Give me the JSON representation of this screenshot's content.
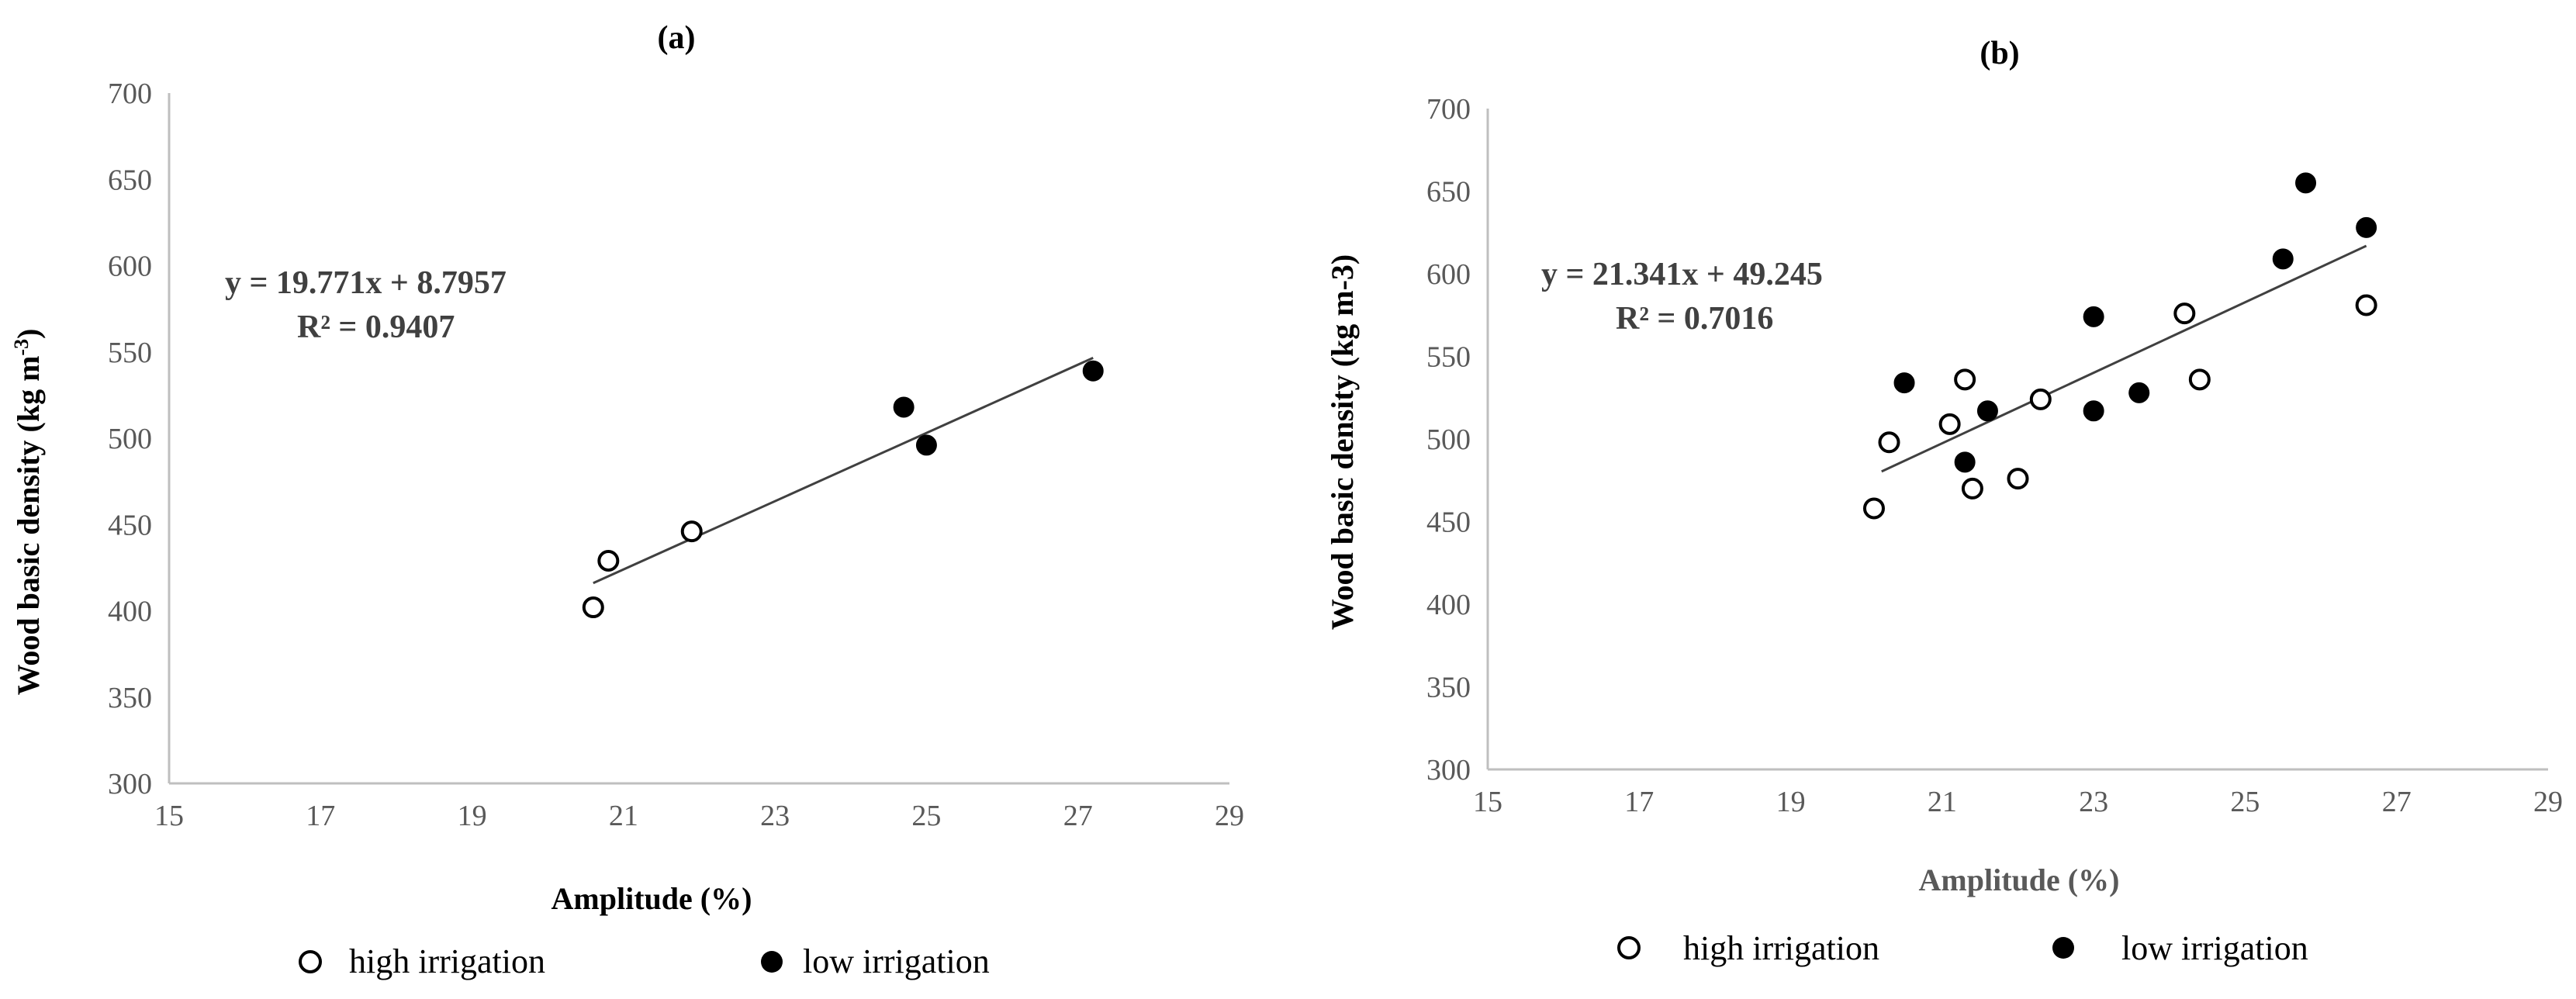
{
  "chart_data": [
    {
      "type": "scatter",
      "title": "(a)",
      "xlabel": "Amplitude  (%)",
      "ylabel": "Wood basic density (kg m",
      "ylabel_sup": "-3",
      "ylabel_end": ")",
      "xlim": [
        15,
        29
      ],
      "ylim": [
        300,
        700
      ],
      "xticks": [
        15,
        17,
        19,
        21,
        23,
        25,
        27,
        29
      ],
      "yticks": [
        300,
        350,
        400,
        450,
        500,
        550,
        600,
        650,
        700
      ],
      "equation": "y = 19.771x + 8.7957",
      "r2": "R² = 0.9407",
      "trendline": {
        "slope": 19.771,
        "intercept": 8.7957,
        "x_range": [
          20.6,
          27.2
        ]
      },
      "series": [
        {
          "name": "high irrigation",
          "style": "open",
          "points": [
            [
              20.6,
              402
            ],
            [
              20.8,
              429
            ],
            [
              21.9,
              446
            ]
          ]
        },
        {
          "name": "low irrigation",
          "style": "filled",
          "points": [
            [
              24.7,
              518
            ],
            [
              25.0,
              496
            ],
            [
              27.2,
              539
            ]
          ]
        }
      ]
    },
    {
      "type": "scatter",
      "title": "(b)",
      "xlabel": "Amplitude  (%)",
      "ylabel": "Wood basic density  (kg m-3)",
      "xlim": [
        15,
        29
      ],
      "ylim": [
        300,
        700
      ],
      "xticks": [
        15,
        17,
        19,
        21,
        23,
        25,
        27,
        29
      ],
      "yticks": [
        300,
        350,
        400,
        450,
        500,
        550,
        600,
        650,
        700
      ],
      "equation": "y = 21.341x + 49.245",
      "r2": "R² = 0.7016",
      "trendline": {
        "slope": 21.341,
        "intercept": 49.245,
        "x_range": [
          20.2,
          26.6
        ]
      },
      "series": [
        {
          "name": "high irrigation",
          "style": "open",
          "points": [
            [
              20.1,
              458
            ],
            [
              20.3,
              498
            ],
            [
              21.1,
              509
            ],
            [
              21.3,
              536
            ],
            [
              21.4,
              470
            ],
            [
              22.0,
              476
            ],
            [
              22.3,
              524
            ],
            [
              24.2,
              576
            ],
            [
              24.4,
              536
            ],
            [
              26.6,
              581
            ]
          ]
        },
        {
          "name": "low irrigation",
          "style": "filled",
          "points": [
            [
              20.5,
              534
            ],
            [
              21.3,
              486
            ],
            [
              21.6,
              517
            ],
            [
              23.0,
              574
            ],
            [
              23.0,
              517
            ],
            [
              23.6,
              528
            ],
            [
              25.5,
              609
            ],
            [
              25.8,
              655
            ],
            [
              26.6,
              628
            ]
          ]
        }
      ]
    }
  ]
}
